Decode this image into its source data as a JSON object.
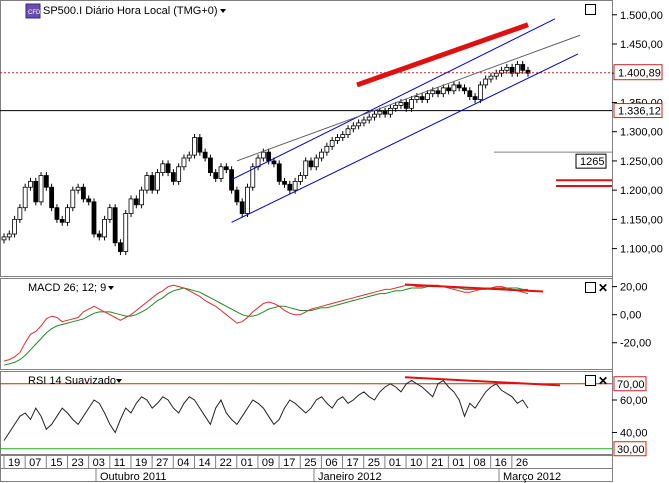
{
  "header": {
    "symbol_badge": "CFD",
    "title": "SP500.I Diário Hora Local (TMG+0)",
    "dropdown_icon": "caret-down-icon"
  },
  "colors": {
    "candle_up": "#ffffff",
    "candle_down": "#000000",
    "channel": "#0000cc",
    "trend_thick": "#e01010",
    "macd_line": "#e03030",
    "signal_line": "#228822",
    "rsi_line": "#222222",
    "rsi_upper": "#cc2020",
    "rsi_lower": "#22aa22",
    "price_line": "#cc2020"
  },
  "panels": {
    "price": {
      "y_ticks": [
        "1.500,00",
        "1.450,00",
        "1.400,00",
        "1.350,00",
        "1.300,00",
        "1.250,00",
        "1.200,00",
        "1.150,00",
        "1.100,00"
      ],
      "current_price_label": "1.400,89",
      "line_label_1": "1.336,12",
      "line_label_2": "1265",
      "range": [
        1060,
        1515
      ]
    },
    "macd": {
      "title": "MACD 26; 12; 9",
      "y_ticks": [
        "20,00",
        "0,00",
        "-20,00"
      ],
      "range": [
        -38,
        24
      ]
    },
    "rsi": {
      "title": "RSI 14 Suavizado",
      "y_ticks": [
        "60,00",
        "40,00"
      ],
      "upper_label": "70,00",
      "lower_label": "30,00",
      "range": [
        28,
        76
      ]
    }
  },
  "x_axis": {
    "day_ticks": [
      "19",
      "07",
      "15",
      "23",
      "03",
      "11",
      "19",
      "27",
      "04",
      "14",
      "22",
      "01",
      "09",
      "17",
      "25",
      "06",
      "17",
      "25",
      "01",
      "10",
      "21",
      "01",
      "08",
      "16",
      "26"
    ],
    "month_labels": [
      "Outubro 2011",
      "Janeiro 2012",
      "Março 2012"
    ]
  },
  "chart_data": {
    "type": "candlestick",
    "title": "SP500.I Diário Hora Local (TMG+0)",
    "series": [
      {
        "name": "SP500.I",
        "values": [
          1120,
          1125,
          1150,
          1170,
          1205,
          1215,
          1180,
          1225,
          1205,
          1170,
          1150,
          1145,
          1170,
          1200,
          1205,
          1185,
          1180,
          1125,
          1120,
          1150,
          1170,
          1110,
          1095,
          1160,
          1185,
          1175,
          1200,
          1225,
          1200,
          1230,
          1245,
          1230,
          1215,
          1240,
          1255,
          1260,
          1290,
          1265,
          1255,
          1230,
          1220,
          1240,
          1235,
          1200,
          1180,
          1160,
          1205,
          1240,
          1255,
          1265,
          1250,
          1245,
          1215,
          1210,
          1200,
          1215,
          1225,
          1250,
          1240,
          1255,
          1265,
          1275,
          1285,
          1290,
          1295,
          1305,
          1310,
          1315,
          1320,
          1325,
          1330,
          1335,
          1330,
          1340,
          1345,
          1350,
          1340,
          1355,
          1360,
          1355,
          1365,
          1370,
          1365,
          1375,
          1370,
          1380,
          1375,
          1370,
          1360,
          1355,
          1380,
          1390,
          1395,
          1400,
          1405,
          1410,
          1400,
          1415,
          1405,
          1400
        ]
      }
    ],
    "price_labels": [
      "1.400,89",
      "1.336,12",
      "1265"
    ],
    "macd": {
      "macd_values": [
        -33,
        -32,
        -30,
        -27,
        -20,
        -14,
        -12,
        -8,
        -3,
        -1,
        -2,
        -5,
        -4,
        -3,
        -2,
        2,
        4,
        6,
        4,
        2,
        0,
        -2,
        -4,
        -2,
        0,
        3,
        6,
        9,
        12,
        15,
        17,
        20,
        21,
        20,
        19,
        17,
        15,
        13,
        10,
        8,
        6,
        3,
        0,
        -3,
        -6,
        -5,
        -2,
        2,
        5,
        8,
        9,
        8,
        6,
        3,
        1,
        0,
        0,
        2,
        4,
        5,
        6,
        7,
        8,
        9,
        10,
        11,
        12,
        13,
        14,
        15,
        16,
        17,
        18,
        18,
        19,
        20,
        21,
        21,
        20,
        20,
        21,
        21,
        21,
        20,
        19,
        18,
        17,
        16,
        16,
        17,
        18,
        19,
        19,
        20,
        20,
        19,
        18,
        17,
        16,
        15
      ],
      "signal_values": [
        -36,
        -35,
        -34,
        -32,
        -29,
        -25,
        -21,
        -17,
        -13,
        -10,
        -8,
        -7,
        -6,
        -5,
        -4,
        -3,
        -1,
        1,
        2,
        2,
        2,
        1,
        0,
        -1,
        -1,
        0,
        2,
        4,
        7,
        10,
        12,
        15,
        17,
        18,
        19,
        18,
        17,
        16,
        14,
        12,
        10,
        8,
        6,
        4,
        2,
        0,
        -1,
        -1,
        0,
        2,
        4,
        5,
        6,
        6,
        5,
        4,
        3,
        3,
        3,
        4,
        5,
        5,
        6,
        7,
        8,
        9,
        10,
        11,
        12,
        13,
        14,
        15,
        15,
        16,
        17,
        17,
        18,
        19,
        19,
        19,
        20,
        20,
        20,
        20,
        20,
        19,
        19,
        18,
        18,
        18,
        18,
        18,
        19,
        19,
        19,
        19,
        19,
        19,
        18,
        18
      ]
    },
    "rsi": {
      "values": [
        35,
        40,
        45,
        50,
        52,
        48,
        55,
        50,
        42,
        45,
        50,
        55,
        52,
        48,
        45,
        50,
        55,
        60,
        58,
        52,
        45,
        40,
        48,
        55,
        52,
        58,
        62,
        60,
        55,
        58,
        62,
        60,
        55,
        52,
        58,
        62,
        60,
        55,
        50,
        45,
        55,
        60,
        52,
        48,
        45,
        50,
        55,
        60,
        58,
        55,
        50,
        45,
        48,
        55,
        60,
        58,
        55,
        52,
        55,
        60,
        62,
        58,
        55,
        60,
        62,
        58,
        60,
        63,
        65,
        62,
        60,
        65,
        68,
        70,
        68,
        65,
        70,
        72,
        70,
        68,
        65,
        62,
        70,
        72,
        68,
        65,
        60,
        50,
        58,
        55,
        60,
        65,
        68,
        70,
        66,
        64,
        62,
        58,
        60,
        55
      ],
      "upper": 70,
      "lower": 30
    },
    "y_range": [
      1060,
      1515
    ]
  }
}
